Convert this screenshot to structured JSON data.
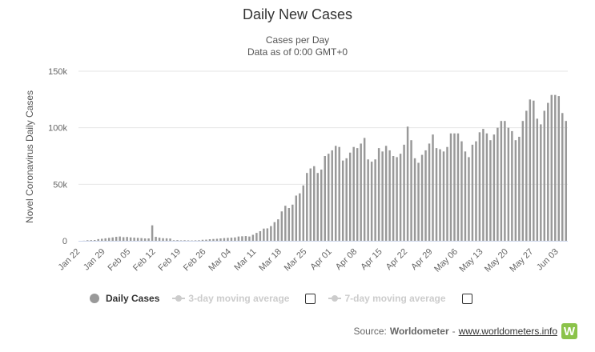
{
  "chart_data": {
    "type": "bar",
    "title": "Daily New Cases",
    "subtitle_1": "Cases per Day",
    "subtitle_2": "Data as of 0:00 GMT+0",
    "ylabel": "Novel Coronavirus Daily Cases",
    "xlabel": "",
    "ylim": [
      0,
      150000
    ],
    "y_ticks": [
      {
        "value": 0,
        "label": "0"
      },
      {
        "value": 50000,
        "label": "50k"
      },
      {
        "value": 100000,
        "label": "100k"
      },
      {
        "value": 150000,
        "label": "150k"
      }
    ],
    "x_tick_labels": [
      "Jan 22",
      "Jan 29",
      "Feb 05",
      "Feb 12",
      "Feb 19",
      "Feb 26",
      "Mar 04",
      "Mar 11",
      "Mar 18",
      "Mar 25",
      "Apr 01",
      "Apr 08",
      "Apr 15",
      "Apr 22",
      "Apr 29",
      "May 06",
      "May 13",
      "May 20",
      "May 27",
      "Jun 03"
    ],
    "bar_color": "#999999",
    "grid": true,
    "series": [
      {
        "name": "Daily Cases",
        "values": [
          0,
          100,
          500,
          600,
          700,
          1500,
          1800,
          2200,
          2600,
          3000,
          3500,
          3800,
          3200,
          3400,
          3000,
          2800,
          2600,
          2400,
          2100,
          2100,
          13700,
          3500,
          2800,
          2300,
          2200,
          2000,
          500,
          600,
          400,
          500,
          400,
          300,
          400,
          500,
          900,
          1000,
          1400,
          1600,
          1800,
          2100,
          2400,
          2600,
          2800,
          3000,
          3800,
          4000,
          4200,
          3800,
          5300,
          7000,
          8500,
          10800,
          11000,
          13000,
          16500,
          19000,
          26000,
          31000,
          29000,
          32000,
          40000,
          42000,
          49000,
          60000,
          64000,
          66000,
          60000,
          63000,
          75000,
          77000,
          80000,
          84000,
          83000,
          71000,
          73000,
          78000,
          83000,
          82000,
          86000,
          91000,
          72000,
          70000,
          72000,
          82000,
          79000,
          84000,
          80000,
          75000,
          74000,
          77000,
          85000,
          101000,
          89000,
          73000,
          69000,
          76000,
          80000,
          86000,
          94000,
          82000,
          81000,
          79000,
          83000,
          95000,
          95000,
          95000,
          88000,
          79000,
          74000,
          85000,
          88000,
          96000,
          99000,
          95000,
          89000,
          94000,
          100000,
          106000,
          106000,
          100000,
          97000,
          89000,
          92000,
          106000,
          115000,
          125000,
          124000,
          108000,
          103000,
          115000,
          122000,
          129000,
          129000,
          128000,
          113000,
          106000
        ]
      }
    ]
  },
  "legend": {
    "daily_cases": "Daily Cases",
    "ma3": "3-day moving average",
    "ma7": "7-day moving average"
  },
  "source": {
    "prefix": "Source:",
    "name": "Worldometer",
    "separator": "-",
    "link": "www.worldometers.info",
    "logo_letter": "W"
  }
}
